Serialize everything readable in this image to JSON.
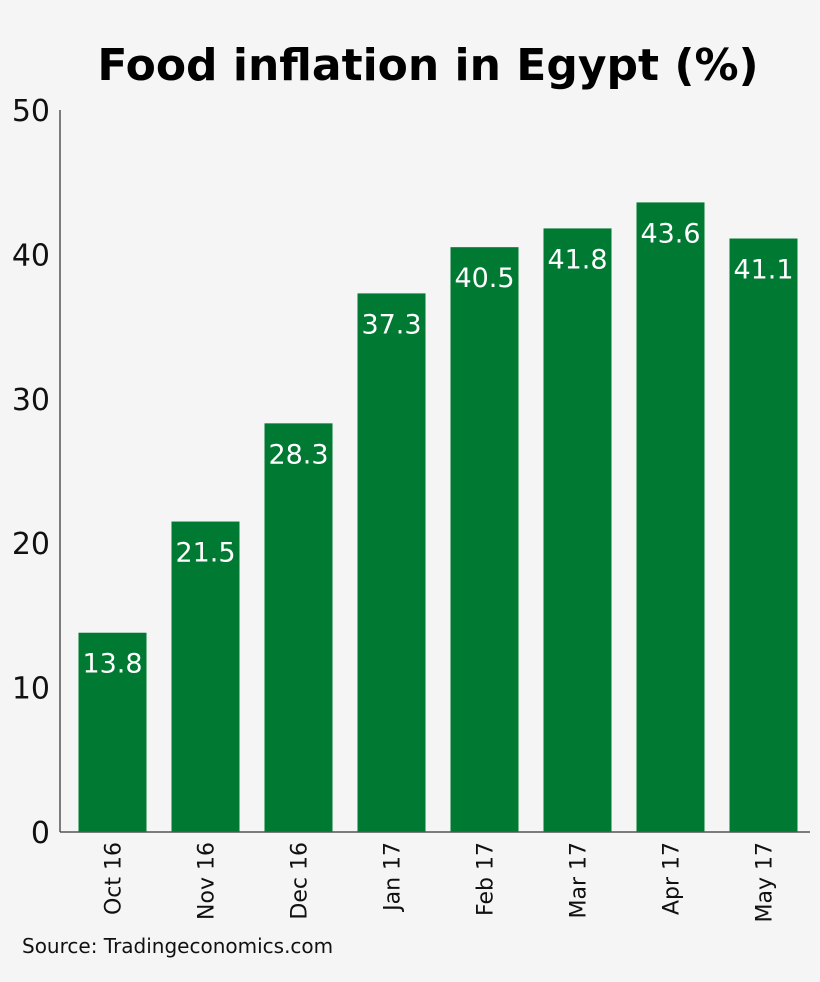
{
  "chart_data": {
    "type": "bar",
    "title": "Food inflation in Egypt (%)",
    "categories": [
      "Oct 16",
      "Nov 16",
      "Dec 16",
      "Jan 17",
      "Feb 17",
      "Mar 17",
      "Apr 17",
      "May 17"
    ],
    "values": [
      13.8,
      21.5,
      28.3,
      37.3,
      40.5,
      41.8,
      43.6,
      41.1
    ],
    "value_labels": [
      "13.8",
      "21.5",
      "28.3",
      "37.3",
      "40.5",
      "41.8",
      "43.6",
      "41.1"
    ],
    "yticks": [
      "0",
      "10",
      "20",
      "30",
      "40",
      "50"
    ],
    "ytick_values": [
      0,
      10,
      20,
      30,
      40,
      50
    ],
    "ylim": [
      0,
      50
    ],
    "grid": false,
    "bar_color": "#007a33",
    "source": "Source: Tradingeconomics.com"
  }
}
